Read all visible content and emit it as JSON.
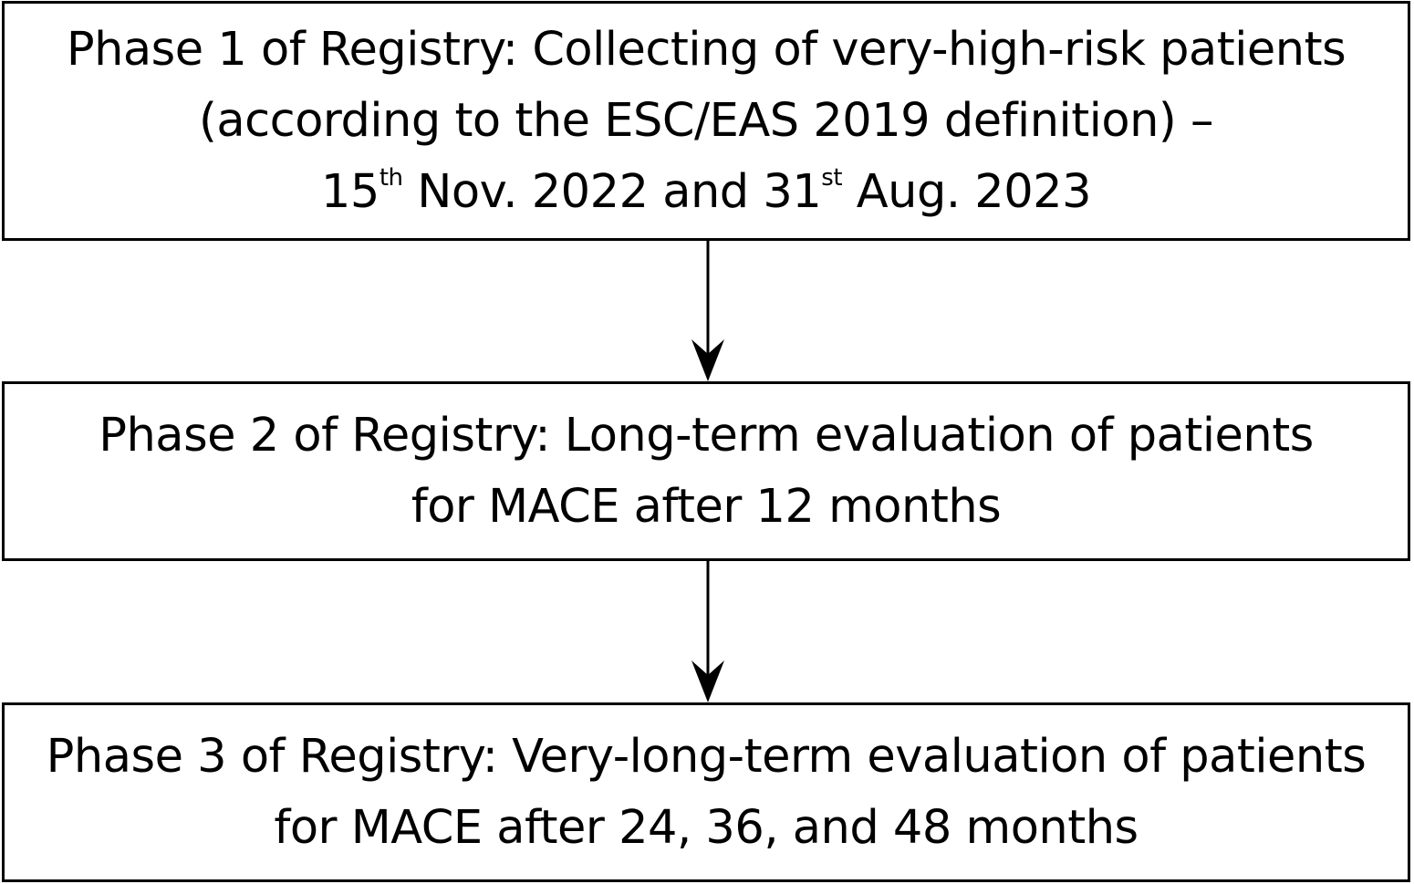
{
  "diagram": {
    "phases": [
      {
        "lines": [
          "Phase 1 of Registry: Collecting of very-high-risk patients",
          "(according to the ESC/EAS 2019 definition) –"
        ],
        "date_line": {
          "start_day": "15",
          "start_suffix": "th",
          "start_rest": " Nov. 2022 and ",
          "end_day": "31",
          "end_suffix": "st",
          "end_rest": " Aug. 2023"
        }
      },
      {
        "lines": [
          "Phase 2 of Registry: Long-term evaluation of patients",
          "for MACE after 12 months"
        ]
      },
      {
        "lines": [
          "Phase 3 of Registry: Very-long-term evaluation of patients",
          "for MACE after 24, 36, and 48 months"
        ]
      }
    ],
    "colors": {
      "border": "#000000",
      "text": "#000000",
      "background": "#ffffff"
    }
  }
}
